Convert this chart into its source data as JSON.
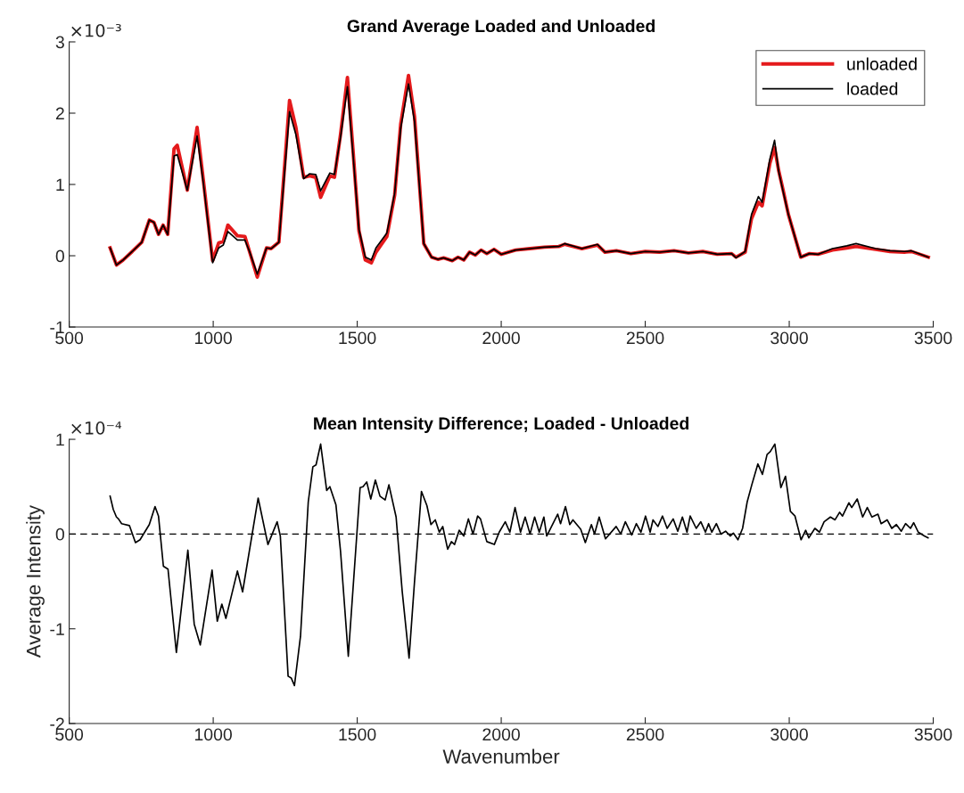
{
  "chart_data": [
    {
      "type": "line",
      "title": "Grand Average Loaded and Unloaded",
      "annotations": [
        "×10⁻³"
      ],
      "legend": "top right",
      "grid": false,
      "xlim": [
        500,
        3500
      ],
      "xticks": [
        500,
        1000,
        1500,
        2000,
        2500,
        3000,
        3500
      ],
      "ylim": [
        -1,
        3
      ],
      "yticks": [
        -1,
        0,
        1,
        2,
        3
      ],
      "x": [
        642,
        664,
        687,
        719,
        752,
        778,
        794,
        810,
        826,
        842,
        864,
        875,
        910,
        944,
        966,
        998,
        1019,
        1035,
        1051,
        1084,
        1110,
        1126,
        1153,
        1185,
        1201,
        1228,
        1265,
        1287,
        1314,
        1335,
        1356,
        1373,
        1405,
        1421,
        1442,
        1466,
        1485,
        1506,
        1528,
        1549,
        1565,
        1603,
        1630,
        1651,
        1678,
        1699,
        1731,
        1758,
        1780,
        1800,
        1830,
        1850,
        1870,
        1890,
        1910,
        1930,
        1950,
        1975,
        2000,
        2050,
        2100,
        2150,
        2200,
        2220,
        2280,
        2334,
        2360,
        2400,
        2450,
        2500,
        2550,
        2600,
        2650,
        2700,
        2750,
        2800,
        2815,
        2847,
        2869,
        2893,
        2906,
        2933,
        2949,
        2963,
        2981,
        2997,
        3040,
        3070,
        3100,
        3150,
        3200,
        3232,
        3300,
        3350,
        3400,
        3424,
        3483
      ],
      "series": [
        {
          "name": "unloaded",
          "color": "#e41a1c",
          "values": [
            0.11,
            -0.13,
            -0.06,
            0.06,
            0.19,
            0.5,
            0.47,
            0.3,
            0.43,
            0.3,
            1.5,
            1.55,
            0.92,
            1.8,
            1.05,
            -0.07,
            0.18,
            0.2,
            0.43,
            0.28,
            0.27,
            0.06,
            -0.3,
            0.11,
            0.1,
            0.19,
            2.18,
            1.8,
            1.1,
            1.12,
            1.1,
            0.82,
            1.12,
            1.1,
            1.7,
            2.5,
            1.5,
            0.35,
            -0.06,
            -0.1,
            0.05,
            0.27,
            0.85,
            1.85,
            2.53,
            1.95,
            0.17,
            -0.02,
            -0.05,
            -0.03,
            -0.07,
            -0.02,
            -0.06,
            0.05,
            0.01,
            0.08,
            0.03,
            0.09,
            0.02,
            0.08,
            0.1,
            0.12,
            0.13,
            0.16,
            0.1,
            0.15,
            0.05,
            0.07,
            0.03,
            0.06,
            0.05,
            0.07,
            0.04,
            0.06,
            0.02,
            0.03,
            -0.02,
            0.05,
            0.52,
            0.75,
            0.7,
            1.3,
            1.52,
            1.2,
            0.88,
            0.58,
            -0.02,
            0.03,
            0.02,
            0.08,
            0.11,
            0.13,
            0.09,
            0.06,
            0.05,
            0.06,
            -0.02
          ]
        },
        {
          "name": "loaded",
          "color": "#000000",
          "values": [
            0.11,
            -0.13,
            -0.06,
            0.06,
            0.19,
            0.5,
            0.47,
            0.3,
            0.43,
            0.3,
            1.4,
            1.42,
            0.92,
            1.68,
            1.01,
            -0.1,
            0.11,
            0.15,
            0.34,
            0.22,
            0.22,
            0.06,
            -0.26,
            0.11,
            0.1,
            0.19,
            2.02,
            1.7,
            1.08,
            1.15,
            1.14,
            0.91,
            1.16,
            1.14,
            1.66,
            2.37,
            1.44,
            0.37,
            -0.02,
            -0.06,
            0.11,
            0.32,
            0.88,
            1.79,
            2.41,
            1.88,
            0.17,
            -0.02,
            -0.05,
            -0.03,
            -0.07,
            -0.02,
            -0.06,
            0.05,
            0.01,
            0.08,
            0.03,
            0.09,
            0.02,
            0.08,
            0.1,
            0.12,
            0.13,
            0.17,
            0.1,
            0.16,
            0.05,
            0.07,
            0.03,
            0.06,
            0.05,
            0.07,
            0.04,
            0.06,
            0.02,
            0.03,
            -0.03,
            0.06,
            0.58,
            0.83,
            0.75,
            1.36,
            1.62,
            1.19,
            0.86,
            0.58,
            -0.02,
            0.03,
            0.02,
            0.1,
            0.14,
            0.17,
            0.1,
            0.07,
            0.06,
            0.07,
            -0.02
          ]
        }
      ]
    },
    {
      "type": "line",
      "title": "Mean Intensity Difference; Loaded - Unloaded",
      "xlabel": "Wavenumber",
      "ylabel": "Average Intensity",
      "annotations": [
        "×10⁻⁴"
      ],
      "grid": false,
      "xlim": [
        500,
        3500
      ],
      "xticks": [
        500,
        1000,
        1500,
        2000,
        2500,
        3000,
        3500
      ],
      "ylim": [
        -2,
        1
      ],
      "yticks": [
        -2,
        -1,
        0,
        1
      ],
      "ref_lines": [
        {
          "axis": "y",
          "value": 0,
          "color": "#000000",
          "line_style": "dashed"
        }
      ],
      "x": [
        642,
        653,
        664,
        671,
        682,
        709,
        730,
        746,
        762,
        778,
        798,
        810,
        827,
        843,
        872,
        912,
        934,
        955,
        996,
        1014,
        1030,
        1044,
        1084,
        1102,
        1156,
        1190,
        1222,
        1233,
        1260,
        1271,
        1282,
        1303,
        1330,
        1346,
        1357,
        1373,
        1394,
        1405,
        1426,
        1442,
        1469,
        1510,
        1520,
        1533,
        1547,
        1563,
        1579,
        1597,
        1610,
        1635,
        1656,
        1680,
        1699,
        1723,
        1742,
        1756,
        1771,
        1785,
        1797,
        1814,
        1827,
        1838,
        1854,
        1870,
        1886,
        1902,
        1918,
        1928,
        1950,
        1976,
        1993,
        2014,
        2030,
        2048,
        2067,
        2083,
        2100,
        2116,
        2132,
        2148,
        2158,
        2196,
        2206,
        2223,
        2238,
        2249,
        2276,
        2292,
        2313,
        2324,
        2340,
        2362,
        2399,
        2415,
        2431,
        2453,
        2469,
        2485,
        2501,
        2517,
        2527,
        2544,
        2560,
        2576,
        2597,
        2613,
        2629,
        2645,
        2656,
        2677,
        2693,
        2709,
        2720,
        2731,
        2747,
        2763,
        2779,
        2795,
        2806,
        2822,
        2838,
        2854,
        2870,
        2891,
        2907,
        2923,
        2934,
        2950,
        2971,
        2987,
        3004,
        3020,
        3041,
        3057,
        3068,
        3089,
        3105,
        3121,
        3143,
        3159,
        3175,
        3185,
        3207,
        3217,
        3236,
        3255,
        3271,
        3287,
        3308,
        3319,
        3340,
        3356,
        3372,
        3389,
        3404,
        3421,
        3432,
        3448,
        3469,
        3482
      ],
      "series": [
        {
          "color": "#000000",
          "values": [
            0.4,
            0.26,
            0.18,
            0.16,
            0.11,
            0.09,
            -0.09,
            -0.06,
            0.02,
            0.1,
            0.29,
            0.19,
            -0.34,
            -0.37,
            -1.25,
            -0.17,
            -0.95,
            -1.17,
            -0.38,
            -0.92,
            -0.74,
            -0.89,
            -0.39,
            -0.61,
            0.38,
            -0.11,
            0.13,
            -0.02,
            -1.5,
            -1.52,
            -1.6,
            -1.08,
            0.34,
            0.71,
            0.73,
            0.95,
            0.46,
            0.5,
            0.31,
            -0.18,
            -1.29,
            0.49,
            0.5,
            0.55,
            0.37,
            0.57,
            0.4,
            0.36,
            0.52,
            0.18,
            -0.6,
            -1.31,
            -0.5,
            0.45,
            0.3,
            0.1,
            0.15,
            0.02,
            0.08,
            -0.16,
            -0.08,
            -0.11,
            0.04,
            -0.02,
            0.16,
            0.0,
            0.19,
            0.16,
            -0.08,
            -0.11,
            0.02,
            0.13,
            0.02,
            0.28,
            0.02,
            0.18,
            0.0,
            0.18,
            0.02,
            0.18,
            -0.02,
            0.21,
            0.11,
            0.29,
            0.1,
            0.15,
            0.05,
            -0.09,
            0.1,
            0.0,
            0.18,
            -0.05,
            0.08,
            0.0,
            0.13,
            -0.01,
            0.11,
            0.02,
            0.19,
            0.02,
            0.15,
            0.08,
            0.19,
            0.06,
            0.16,
            0.03,
            0.18,
            0.02,
            0.19,
            0.06,
            0.13,
            0.02,
            0.11,
            0.02,
            0.11,
            0.0,
            0.03,
            -0.02,
            0.01,
            -0.06,
            0.06,
            0.34,
            0.52,
            0.74,
            0.63,
            0.84,
            0.87,
            0.95,
            0.49,
            0.61,
            0.24,
            0.19,
            -0.06,
            0.04,
            -0.04,
            0.06,
            0.02,
            0.13,
            0.18,
            0.15,
            0.23,
            0.19,
            0.33,
            0.28,
            0.37,
            0.18,
            0.28,
            0.18,
            0.21,
            0.11,
            0.15,
            0.06,
            0.1,
            0.03,
            0.11,
            0.06,
            0.12,
            0.02,
            -0.02,
            -0.04
          ]
        }
      ]
    }
  ]
}
